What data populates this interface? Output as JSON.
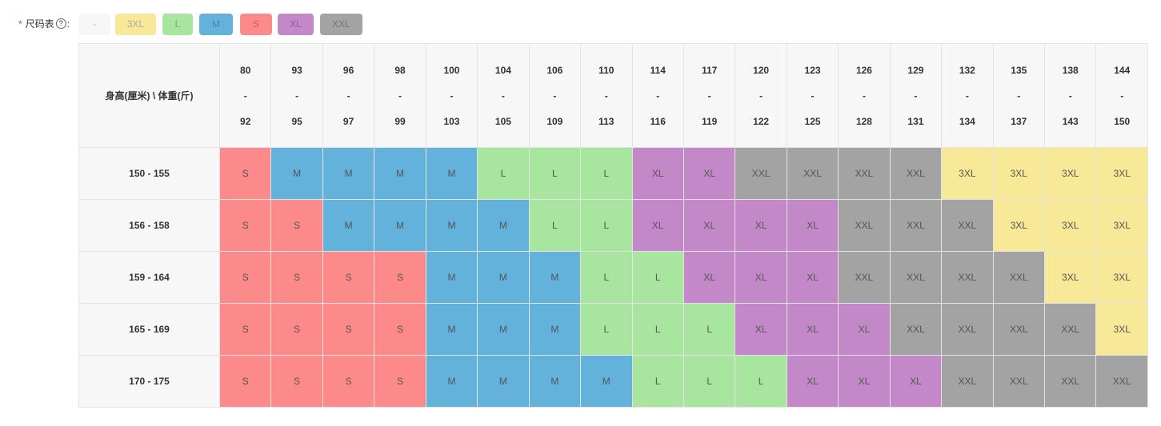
{
  "size_selector": {
    "required_mark": "*",
    "label": "尺码表",
    "help_glyph": "?",
    "colon": ":",
    "options": [
      {
        "label": "-",
        "bg": "#f7f7f7",
        "fg": "#b0b0b0"
      },
      {
        "label": "3XL",
        "bg": "#f8e999",
        "fg": "#aaaaaa"
      },
      {
        "label": "L",
        "bg": "#a8e6a0",
        "fg": "#7aa87a"
      },
      {
        "label": "M",
        "bg": "#62b2db",
        "fg": "#4b83a8"
      },
      {
        "label": "S",
        "bg": "#fc8a8a",
        "fg": "#cc6060"
      },
      {
        "label": "XL",
        "bg": "#c388c8",
        "fg": "#8e5e93"
      },
      {
        "label": "XXL",
        "bg": "#a3a3a3",
        "fg": "#767676"
      }
    ]
  },
  "table": {
    "corner_label": "身高(厘米) \\ 体重(斤)",
    "weight_ranges": [
      {
        "from": "80",
        "sep": "-",
        "to": "92"
      },
      {
        "from": "93",
        "sep": "-",
        "to": "95"
      },
      {
        "from": "96",
        "sep": "-",
        "to": "97"
      },
      {
        "from": "98",
        "sep": "-",
        "to": "99"
      },
      {
        "from": "100",
        "sep": "-",
        "to": "103"
      },
      {
        "from": "104",
        "sep": "-",
        "to": "105"
      },
      {
        "from": "106",
        "sep": "-",
        "to": "109"
      },
      {
        "from": "110",
        "sep": "-",
        "to": "113"
      },
      {
        "from": "114",
        "sep": "-",
        "to": "116"
      },
      {
        "from": "117",
        "sep": "-",
        "to": "119"
      },
      {
        "from": "120",
        "sep": "-",
        "to": "122"
      },
      {
        "from": "123",
        "sep": "-",
        "to": "125"
      },
      {
        "from": "126",
        "sep": "-",
        "to": "128"
      },
      {
        "from": "129",
        "sep": "-",
        "to": "131"
      },
      {
        "from": "132",
        "sep": "-",
        "to": "134"
      },
      {
        "from": "135",
        "sep": "-",
        "to": "137"
      },
      {
        "from": "138",
        "sep": "-",
        "to": "143"
      },
      {
        "from": "144",
        "sep": "-",
        "to": "150"
      }
    ],
    "rows": [
      {
        "height": "150 - 155",
        "sizes": [
          "S",
          "M",
          "M",
          "M",
          "M",
          "L",
          "L",
          "L",
          "XL",
          "XL",
          "XXL",
          "XXL",
          "XXL",
          "XXL",
          "3XL",
          "3XL",
          "3XL",
          "3XL"
        ]
      },
      {
        "height": "156 - 158",
        "sizes": [
          "S",
          "S",
          "M",
          "M",
          "M",
          "M",
          "L",
          "L",
          "XL",
          "XL",
          "XL",
          "XL",
          "XXL",
          "XXL",
          "XXL",
          "3XL",
          "3XL",
          "3XL"
        ]
      },
      {
        "height": "159 - 164",
        "sizes": [
          "S",
          "S",
          "S",
          "S",
          "M",
          "M",
          "M",
          "L",
          "L",
          "XL",
          "XL",
          "XL",
          "XXL",
          "XXL",
          "XXL",
          "XXL",
          "3XL",
          "3XL"
        ]
      },
      {
        "height": "165 - 169",
        "sizes": [
          "S",
          "S",
          "S",
          "S",
          "M",
          "M",
          "M",
          "L",
          "L",
          "L",
          "XL",
          "XL",
          "XL",
          "XXL",
          "XXL",
          "XXL",
          "XXL",
          "3XL"
        ]
      },
      {
        "height": "170 - 175",
        "sizes": [
          "S",
          "S",
          "S",
          "S",
          "M",
          "M",
          "M",
          "M",
          "L",
          "L",
          "L",
          "XL",
          "XL",
          "XL",
          "XXL",
          "XXL",
          "XXL",
          "XXL"
        ]
      }
    ],
    "size_colors": {
      "S": "#fc8a8a",
      "M": "#62b2db",
      "L": "#a8e6a0",
      "XL": "#c388c8",
      "XXL": "#a3a3a3",
      "3XL": "#f8e999"
    }
  }
}
